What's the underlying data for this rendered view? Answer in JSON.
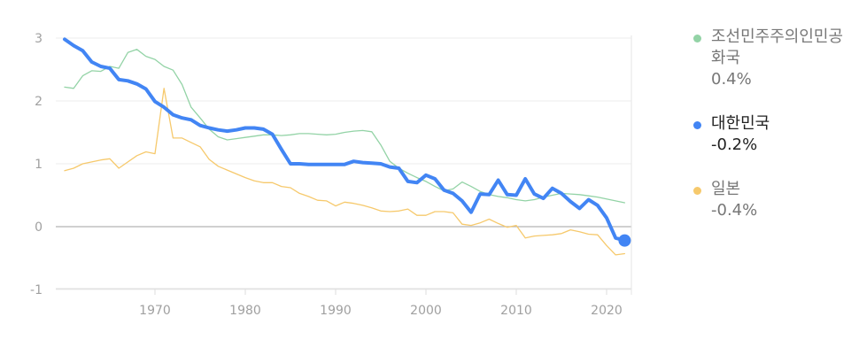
{
  "chart_data": {
    "type": "line",
    "ylim": [
      -1,
      3.2
    ],
    "xlim": [
      1959,
      2024
    ],
    "yticks": [
      "3",
      "2",
      "1",
      "0",
      "-1"
    ],
    "xticks": [
      "1970",
      "1980",
      "1990",
      "2000",
      "2010",
      "2020"
    ],
    "grid": true,
    "legend_position": "right",
    "series": [
      {
        "name": "조선민주주의인민공화국",
        "value_label": "0.4%",
        "color": "#93d3a6",
        "x": [
          1960,
          1961,
          1962,
          1963,
          1964,
          1965,
          1966,
          1967,
          1968,
          1969,
          1970,
          1971,
          1972,
          1973,
          1974,
          1975,
          1976,
          1977,
          1978,
          1979,
          1980,
          1981,
          1982,
          1983,
          1984,
          1985,
          1986,
          1987,
          1988,
          1989,
          1990,
          1991,
          1992,
          1993,
          1994,
          1995,
          1996,
          1997,
          1998,
          1999,
          2000,
          2001,
          2002,
          2003,
          2004,
          2005,
          2006,
          2007,
          2008,
          2009,
          2010,
          2011,
          2012,
          2013,
          2014,
          2015,
          2016,
          2017,
          2018,
          2019,
          2020,
          2021,
          2022
        ],
        "values": [
          2.22,
          2.2,
          2.4,
          2.48,
          2.47,
          2.55,
          2.52,
          2.77,
          2.82,
          2.71,
          2.66,
          2.55,
          2.49,
          2.26,
          1.9,
          1.73,
          1.55,
          1.43,
          1.38,
          1.4,
          1.42,
          1.44,
          1.46,
          1.46,
          1.45,
          1.46,
          1.48,
          1.48,
          1.47,
          1.46,
          1.47,
          1.5,
          1.52,
          1.53,
          1.51,
          1.3,
          1.04,
          0.93,
          0.85,
          0.78,
          0.72,
          0.64,
          0.57,
          0.6,
          0.71,
          0.64,
          0.56,
          0.51,
          0.48,
          0.46,
          0.43,
          0.41,
          0.43,
          0.47,
          0.5,
          0.53,
          0.52,
          0.51,
          0.49,
          0.47,
          0.44,
          0.41,
          0.38
        ]
      },
      {
        "name": "대한민국",
        "value_label": "-0.2%",
        "color": "#4285f4",
        "x": [
          1960,
          1961,
          1962,
          1963,
          1964,
          1965,
          1966,
          1967,
          1968,
          1969,
          1970,
          1971,
          1972,
          1973,
          1974,
          1975,
          1976,
          1977,
          1978,
          1979,
          1980,
          1981,
          1982,
          1983,
          1984,
          1985,
          1986,
          1987,
          1988,
          1989,
          1990,
          1991,
          1992,
          1993,
          1994,
          1995,
          1996,
          1997,
          1998,
          1999,
          2000,
          2001,
          2002,
          2003,
          2004,
          2005,
          2006,
          2007,
          2008,
          2009,
          2010,
          2011,
          2012,
          2013,
          2014,
          2015,
          2016,
          2017,
          2018,
          2019,
          2020,
          2021,
          2022
        ],
        "values": [
          2.98,
          2.88,
          2.8,
          2.62,
          2.55,
          2.52,
          2.34,
          2.32,
          2.27,
          2.19,
          1.99,
          1.9,
          1.78,
          1.73,
          1.7,
          1.61,
          1.57,
          1.54,
          1.52,
          1.54,
          1.57,
          1.57,
          1.55,
          1.47,
          1.23,
          1.0,
          1.0,
          0.99,
          0.99,
          0.99,
          0.99,
          0.99,
          1.04,
          1.02,
          1.01,
          1.0,
          0.95,
          0.93,
          0.72,
          0.7,
          0.82,
          0.76,
          0.58,
          0.53,
          0.41,
          0.23,
          0.52,
          0.51,
          0.74,
          0.51,
          0.5,
          0.76,
          0.52,
          0.45,
          0.61,
          0.53,
          0.4,
          0.29,
          0.43,
          0.34,
          0.14,
          -0.18,
          -0.22
        ]
      },
      {
        "name": "일본",
        "value_label": "-0.4%",
        "color": "#f6c96c",
        "x": [
          1960,
          1961,
          1962,
          1963,
          1964,
          1965,
          1966,
          1967,
          1968,
          1969,
          1970,
          1971,
          1972,
          1973,
          1974,
          1975,
          1976,
          1977,
          1978,
          1979,
          1980,
          1981,
          1982,
          1983,
          1984,
          1985,
          1986,
          1987,
          1988,
          1989,
          1990,
          1991,
          1992,
          1993,
          1994,
          1995,
          1996,
          1997,
          1998,
          1999,
          2000,
          2001,
          2002,
          2003,
          2004,
          2005,
          2006,
          2007,
          2008,
          2009,
          2010,
          2011,
          2012,
          2013,
          2014,
          2015,
          2016,
          2017,
          2018,
          2019,
          2020,
          2021,
          2022
        ],
        "values": [
          0.89,
          0.93,
          1.0,
          1.03,
          1.06,
          1.08,
          0.93,
          1.03,
          1.13,
          1.19,
          1.16,
          2.2,
          1.41,
          1.41,
          1.34,
          1.27,
          1.07,
          0.96,
          0.9,
          0.84,
          0.78,
          0.73,
          0.7,
          0.7,
          0.64,
          0.62,
          0.53,
          0.48,
          0.42,
          0.41,
          0.33,
          0.39,
          0.37,
          0.34,
          0.3,
          0.25,
          0.24,
          0.25,
          0.28,
          0.18,
          0.18,
          0.24,
          0.24,
          0.22,
          0.04,
          0.02,
          0.06,
          0.12,
          0.05,
          -0.01,
          0.02,
          -0.18,
          -0.15,
          -0.14,
          -0.13,
          -0.11,
          -0.05,
          -0.08,
          -0.12,
          -0.13,
          -0.3,
          -0.45,
          -0.43
        ]
      }
    ]
  }
}
